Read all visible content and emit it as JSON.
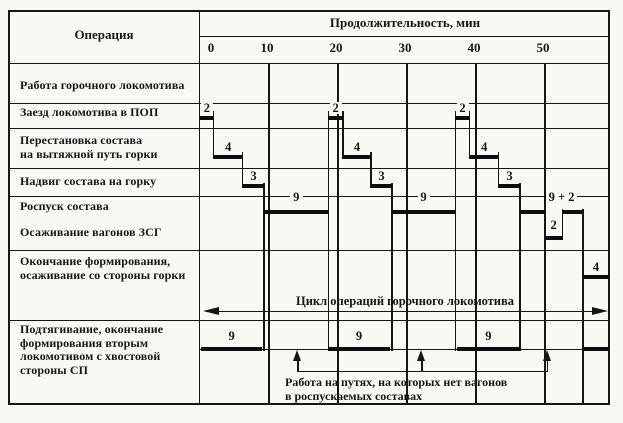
{
  "header": {
    "operation_column": "Операция"
  },
  "chart_data": {
    "type": "gantt",
    "title": "Продолжительность, мин",
    "x_axis": {
      "label": "Продолжительность, мин",
      "unit": "мин",
      "ticks": [
        "0",
        "10",
        "20",
        "30",
        "40",
        "50"
      ],
      "tick_values": [
        0,
        10,
        20,
        30,
        40,
        50
      ],
      "range_min": [
        0,
        59.4
      ],
      "grid": "vertical-every-10-min"
    },
    "operations": [
      {
        "id": "rabota",
        "lines": [
          "Работа горочного локомотива"
        ]
      },
      {
        "id": "zaezd",
        "lines": [
          "Заезд локомотива в ПОП"
        ]
      },
      {
        "id": "perestanovka",
        "lines": [
          "Перестановка состава",
          "на вытяжной путь горки"
        ]
      },
      {
        "id": "nadvig",
        "lines": [
          "Надвиг состава на горку"
        ]
      },
      {
        "id": "rospusk",
        "lines": [
          "Роспуск состава"
        ]
      },
      {
        "id": "osazhivanie_zsg",
        "lines": [
          "Осаживание вагонов ЗСГ"
        ]
      },
      {
        "id": "okonchanie",
        "lines": [
          "Окончание формирования,",
          "осаживание со стороны горки"
        ]
      },
      {
        "id": "podtyagivanie",
        "lines": [
          "Подтягивание, окончание",
          "формирования вторым",
          "локомотивом с хвостовой",
          "стороны СП"
        ]
      }
    ],
    "bars": [
      {
        "op": "zaezd",
        "start": 0,
        "end": 2,
        "label": "2"
      },
      {
        "op": "perestanovka",
        "start": 2,
        "end": 6.2,
        "label": "4"
      },
      {
        "op": "nadvig",
        "start": 6.2,
        "end": 9.3,
        "label": "3"
      },
      {
        "op": "rospusk",
        "start": 9.3,
        "end": 18.6,
        "label": "9"
      },
      {
        "op": "zaezd",
        "start": 18.6,
        "end": 20.7,
        "label": "2"
      },
      {
        "op": "perestanovka",
        "start": 20.7,
        "end": 24.8,
        "label": "4"
      },
      {
        "op": "nadvig",
        "start": 24.8,
        "end": 27.8,
        "label": "3"
      },
      {
        "op": "rospusk",
        "start": 27.8,
        "end": 37,
        "label": "9"
      },
      {
        "op": "zaezd",
        "start": 37,
        "end": 39.1,
        "label": "2"
      },
      {
        "op": "perestanovka",
        "start": 39.1,
        "end": 43.3,
        "label": "4"
      },
      {
        "op": "nadvig",
        "start": 43.3,
        "end": 46.4,
        "label": "3"
      },
      {
        "op": "rospusk",
        "start": 46.4,
        "end": 50,
        "label": "9 + 2",
        "label_at": 52.4
      },
      {
        "op": "osazhivanie_zsg",
        "start": 50,
        "end": 52.5,
        "label": "2"
      },
      {
        "op": "rospusk",
        "start": 52.5,
        "end": 55.5,
        "label": ""
      },
      {
        "op": "okonchanie",
        "start": 55.5,
        "end": 59.4,
        "label": "4"
      },
      {
        "op": "podtyagivanie",
        "start": 0.15,
        "end": 9,
        "label": "9"
      },
      {
        "op": "podtyagivanie",
        "start": 18.6,
        "end": 27.5,
        "label": "9"
      },
      {
        "op": "podtyagivanie",
        "start": 37.2,
        "end": 46.4,
        "label": "9"
      },
      {
        "op": "podtyagivanie",
        "start": 55.5,
        "end": 59.4,
        "label": ""
      }
    ],
    "connectors": [
      {
        "t": 2,
        "top": "zaezd",
        "bottom": "perestanovka"
      },
      {
        "t": 6.2,
        "top": "perestanovka",
        "bottom": "nadvig"
      },
      {
        "t": 9.3,
        "top": "nadvig",
        "bottom": "podtyagivanie"
      },
      {
        "t": 18.6,
        "top": "zaezd",
        "bottom": "podtyagivanie"
      },
      {
        "t": 20.7,
        "top": "zaezd",
        "bottom": "perestanovka"
      },
      {
        "t": 24.8,
        "top": "perestanovka",
        "bottom": "nadvig"
      },
      {
        "t": 27.8,
        "top": "nadvig",
        "bottom": "podtyagivanie"
      },
      {
        "t": 37,
        "top": "zaezd",
        "bottom": "podtyagivanie"
      },
      {
        "t": 39.1,
        "top": "zaezd",
        "bottom": "perestanovka"
      },
      {
        "t": 43.3,
        "top": "perestanovka",
        "bottom": "nadvig"
      },
      {
        "t": 46.4,
        "top": "nadvig",
        "bottom": "podtyagivanie"
      },
      {
        "t": 50,
        "top": "rospusk",
        "bottom": "osazhivanie_zsg"
      },
      {
        "t": 52.5,
        "top": "rospusk",
        "bottom": "osazhivanie_zsg"
      },
      {
        "t": 55.5,
        "top": "rospusk",
        "bottom": "table_bottom"
      }
    ],
    "cycle_annotation": {
      "label": "Цикл операций горочного локомотива"
    },
    "note": {
      "lines": [
        "Работа на путях, на которых нет вагонов",
        "в роспускаемых составах"
      ],
      "arrow_times_min": [
        14.2,
        32.2,
        50.4
      ]
    }
  }
}
